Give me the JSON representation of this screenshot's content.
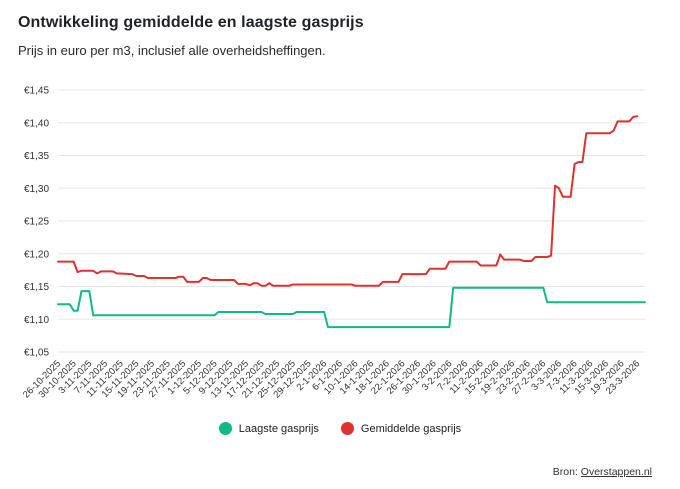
{
  "title": "Ontwikkeling gemiddelde en laagste gasprijs",
  "subtitle": "Prijs in euro per m3, inclusief alle overheidsheffingen.",
  "source_label": "Bron:",
  "source_link": "Overstappen.nl",
  "chart_data": {
    "type": "line",
    "y_tick_labels": [
      "€1,05",
      "€1,10",
      "€1,15",
      "€1,20",
      "€1,25",
      "€1,30",
      "€1,35",
      "€1,40",
      "€1,45"
    ],
    "y_ticks": [
      1.05,
      1.1,
      1.15,
      1.2,
      1.25,
      1.3,
      1.35,
      1.4,
      1.45
    ],
    "ylim": [
      1.05,
      1.45
    ],
    "x_labels": [
      "26-10-2025",
      "30-10-2025",
      "3-11-2025",
      "7-11-2025",
      "11-11-2025",
      "15-11-2025",
      "19-11-2025",
      "23-11-2025",
      "27-11-2025",
      "1-12-2025",
      "5-12-2025",
      "9-12-2025",
      "13-12-2025",
      "17-12-2025",
      "21-12-2025",
      "25-12-2025",
      "29-12-2025",
      "2-1-2026",
      "6-1-2026",
      "10-1-2026",
      "14-1-2026",
      "18-1-2026",
      "22-1-2026",
      "26-1-2026",
      "30-1-2026",
      "3-2-2026",
      "7-2-2026",
      "11-2-2026",
      "15-2-2026",
      "19-2-2026",
      "23-2-2026",
      "27-2-2026",
      "3-3-2026",
      "7-3-2026",
      "11-3-2026",
      "15-3-2026",
      "19-3-2026",
      "23-3-2026"
    ],
    "grid": true,
    "legend_position": "bottom",
    "series": [
      {
        "name": "Laagste gasprijs",
        "color": "#12b886",
        "points": [
          [
            "26-10-2025",
            1.123
          ],
          [
            "29-10-2025",
            1.123
          ],
          [
            "30-10-2025",
            1.113
          ],
          [
            "31-10-2025",
            1.113
          ],
          [
            "1-11-2025",
            1.143
          ],
          [
            "3-11-2025",
            1.143
          ],
          [
            "4-11-2025",
            1.106
          ],
          [
            "5-12-2025",
            1.106
          ],
          [
            "6-12-2025",
            1.111
          ],
          [
            "17-12-2025",
            1.111
          ],
          [
            "18-12-2025",
            1.108
          ],
          [
            "25-12-2025",
            1.108
          ],
          [
            "26-12-2025",
            1.111
          ],
          [
            "2-1-2026",
            1.111
          ],
          [
            "3-1-2026",
            1.088
          ],
          [
            "3-2-2026",
            1.088
          ],
          [
            "4-2-2026",
            1.148
          ],
          [
            "27-2-2026",
            1.148
          ],
          [
            "28-2-2026",
            1.126
          ],
          [
            "25-3-2026",
            1.126
          ]
        ]
      },
      {
        "name": "Gemiddelde gasprijs",
        "color": "#e03131",
        "points": [
          [
            "26-10-2025",
            1.188
          ],
          [
            "30-10-2025",
            1.188
          ],
          [
            "31-10-2025",
            1.172
          ],
          [
            "1-11-2025",
            1.174
          ],
          [
            "4-11-2025",
            1.174
          ],
          [
            "5-11-2025",
            1.17
          ],
          [
            "6-11-2025",
            1.173
          ],
          [
            "9-11-2025",
            1.173
          ],
          [
            "10-11-2025",
            1.17
          ],
          [
            "14-11-2025",
            1.169
          ],
          [
            "15-11-2025",
            1.166
          ],
          [
            "17-11-2025",
            1.166
          ],
          [
            "18-11-2025",
            1.163
          ],
          [
            "25-11-2025",
            1.163
          ],
          [
            "26-11-2025",
            1.165
          ],
          [
            "27-11-2025",
            1.165
          ],
          [
            "28-11-2025",
            1.157
          ],
          [
            "1-12-2025",
            1.157
          ],
          [
            "2-12-2025",
            1.163
          ],
          [
            "3-12-2025",
            1.163
          ],
          [
            "4-12-2025",
            1.16
          ],
          [
            "10-12-2025",
            1.16
          ],
          [
            "11-12-2025",
            1.154
          ],
          [
            "13-12-2025",
            1.154
          ],
          [
            "14-12-2025",
            1.152
          ],
          [
            "15-12-2025",
            1.155
          ],
          [
            "16-12-2025",
            1.155
          ],
          [
            "17-12-2025",
            1.151
          ],
          [
            "18-12-2025",
            1.151
          ],
          [
            "19-12-2025",
            1.155
          ],
          [
            "20-12-2025",
            1.151
          ],
          [
            "24-12-2025",
            1.151
          ],
          [
            "25-12-2025",
            1.153
          ],
          [
            "9-1-2026",
            1.153
          ],
          [
            "10-1-2026",
            1.151
          ],
          [
            "16-1-2026",
            1.151
          ],
          [
            "17-1-2026",
            1.157
          ],
          [
            "21-1-2026",
            1.157
          ],
          [
            "22-1-2026",
            1.169
          ],
          [
            "28-1-2026",
            1.169
          ],
          [
            "29-1-2026",
            1.177
          ],
          [
            "2-2-2026",
            1.177
          ],
          [
            "3-2-2026",
            1.188
          ],
          [
            "10-2-2026",
            1.188
          ],
          [
            "11-2-2026",
            1.182
          ],
          [
            "15-2-2026",
            1.182
          ],
          [
            "16-2-2026",
            1.199
          ],
          [
            "17-2-2026",
            1.191
          ],
          [
            "21-2-2026",
            1.191
          ],
          [
            "22-2-2026",
            1.189
          ],
          [
            "24-2-2026",
            1.189
          ],
          [
            "25-2-2026",
            1.195
          ],
          [
            "28-2-2026",
            1.195
          ],
          [
            "1-3-2026",
            1.197
          ],
          [
            "2-3-2026",
            1.304
          ],
          [
            "3-3-2026",
            1.3
          ],
          [
            "4-3-2026",
            1.287
          ],
          [
            "6-3-2026",
            1.287
          ],
          [
            "7-3-2026",
            1.337
          ],
          [
            "8-3-2026",
            1.34
          ],
          [
            "9-3-2026",
            1.34
          ],
          [
            "10-3-2026",
            1.384
          ],
          [
            "16-3-2026",
            1.384
          ],
          [
            "17-3-2026",
            1.388
          ],
          [
            "18-3-2026",
            1.402
          ],
          [
            "21-3-2026",
            1.402
          ],
          [
            "22-3-2026",
            1.409
          ],
          [
            "23-3-2026",
            1.41
          ]
        ]
      }
    ]
  }
}
